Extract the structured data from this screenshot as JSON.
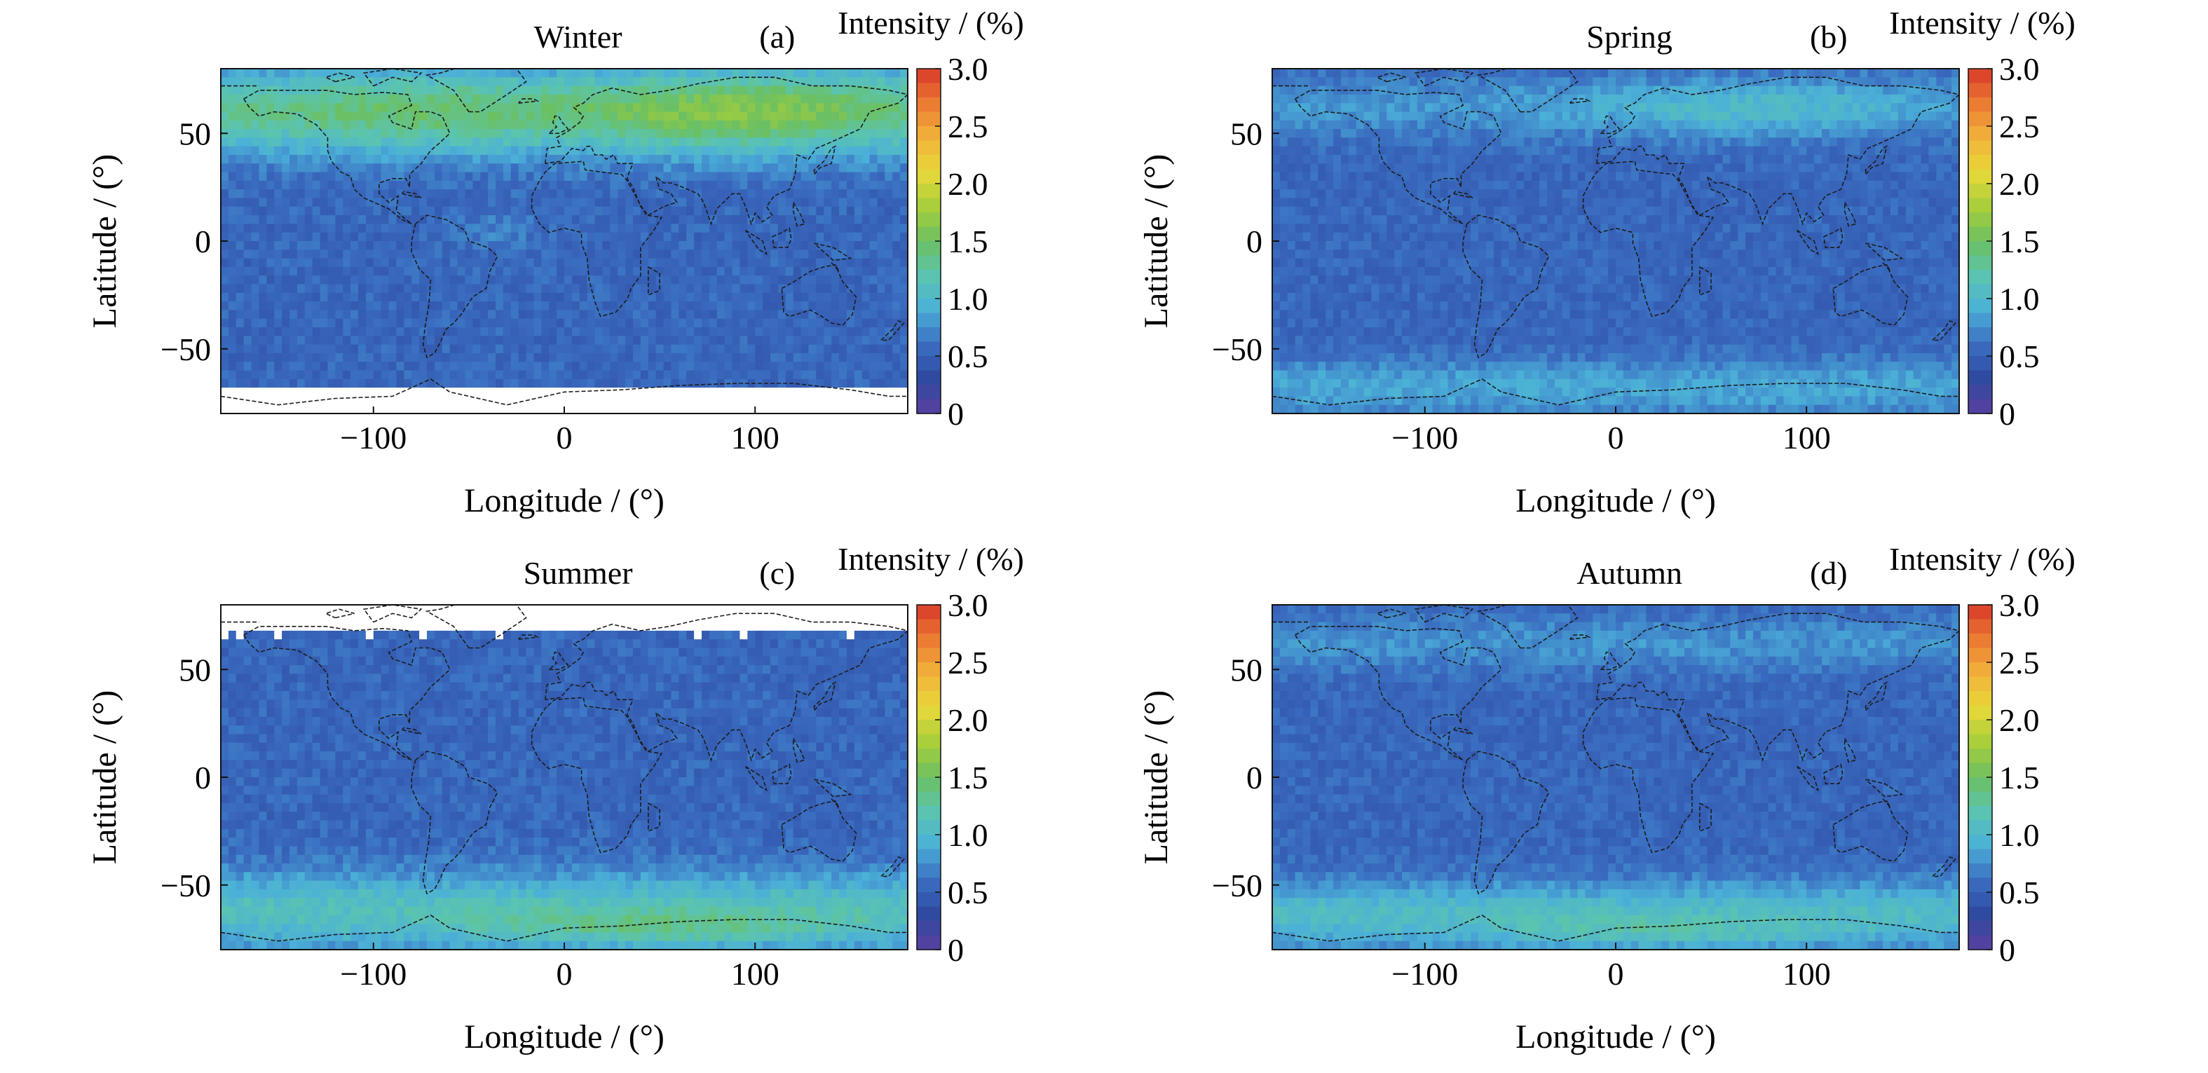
{
  "chart_data": [
    {
      "type": "heatmap",
      "title": "Winter",
      "panel_label": "(a)",
      "xlabel": "Longitude / (°)",
      "ylabel": "Latitude / (°)",
      "xlim": [
        -180,
        180
      ],
      "ylim": [
        -80,
        80
      ],
      "xticks": [
        "−100",
        "0",
        "100"
      ],
      "yticks": [
        "50",
        "0",
        "−50"
      ],
      "colorbar": {
        "label": "Intensity / (%)",
        "ticks": [
          "3.0",
          "2.5",
          "2.0",
          "1.5",
          "1.0",
          "0.5",
          "0"
        ],
        "range": [
          0,
          3
        ]
      },
      "season_key": "winter",
      "features": {
        "summary": "Enhanced intensity (~1.5–2.0%) over northern mid/high latitudes (max over Eurasia ~1.8%); ~0.5% elsewhere; no data south of ~68°S.",
        "no_data_south_of_lat": -68,
        "no_data_north_of_lat": null
      }
    },
    {
      "type": "heatmap",
      "title": "Spring",
      "panel_label": "(b)",
      "xlabel": "Longitude / (°)",
      "ylabel": "Latitude / (°)",
      "xlim": [
        -180,
        180
      ],
      "ylim": [
        -80,
        80
      ],
      "xticks": [
        "−100",
        "0",
        "100"
      ],
      "yticks": [
        "50",
        "0",
        "−50"
      ],
      "colorbar": {
        "label": "Intensity / (%)",
        "ticks": [
          "3.0",
          "2.5",
          "2.0",
          "1.5",
          "1.0",
          "0.5",
          "0"
        ],
        "range": [
          0,
          3
        ]
      },
      "season_key": "spring",
      "features": {
        "summary": "Mostly ~0.5%; weak enhancement (~0.9–1.1%) at northern high latitudes over Eurasia and at southern high latitudes.",
        "no_data_south_of_lat": null,
        "no_data_north_of_lat": null
      }
    },
    {
      "type": "heatmap",
      "title": "Summer",
      "panel_label": "(c)",
      "xlabel": "Longitude / (°)",
      "ylabel": "Latitude / (°)",
      "xlim": [
        -180,
        180
      ],
      "ylim": [
        -80,
        80
      ],
      "xticks": [
        "−100",
        "0",
        "100"
      ],
      "yticks": [
        "50",
        "0",
        "−50"
      ],
      "colorbar": {
        "label": "Intensity / (%)",
        "ticks": [
          "3.0",
          "2.5",
          "2.0",
          "1.5",
          "1.0",
          "0.5",
          "0"
        ],
        "range": [
          0,
          3
        ]
      },
      "season_key": "summer",
      "features": {
        "summary": "Enhanced intensity (~1.0–1.6%) over southern mid/high latitudes; ~0.5% elsewhere; no data north of ~67°N.",
        "no_data_south_of_lat": null,
        "no_data_north_of_lat": 67
      }
    },
    {
      "type": "heatmap",
      "title": "Autumn",
      "panel_label": "(d)",
      "xlabel": "Longitude / (°)",
      "ylabel": "Latitude / (°)",
      "xlim": [
        -180,
        180
      ],
      "ylim": [
        -80,
        80
      ],
      "xticks": [
        "−100",
        "0",
        "100"
      ],
      "yticks": [
        "50",
        "0",
        "−50"
      ],
      "colorbar": {
        "label": "Intensity / (%)",
        "ticks": [
          "3.0",
          "2.5",
          "2.0",
          "1.5",
          "1.0",
          "0.5",
          "0"
        ],
        "range": [
          0,
          3
        ]
      },
      "season_key": "autumn",
      "features": {
        "summary": "Mostly ~0.5%; enhancement (~1.0–1.5%) over southern high latitudes and weaker over northern high latitudes.",
        "no_data_south_of_lat": null,
        "no_data_north_of_lat": null
      }
    }
  ],
  "colors": {
    "no_data": "#ffffff",
    "coastline": "#1c1c1c",
    "colormap": [
      "#5a3fa0",
      "#2e4aa0",
      "#3a6cc0",
      "#4bb0d8",
      "#5bc4b0",
      "#6cc060",
      "#a8cf3a",
      "#e8d83a",
      "#f2b23a",
      "#ec7a32",
      "#d83a2a"
    ]
  }
}
